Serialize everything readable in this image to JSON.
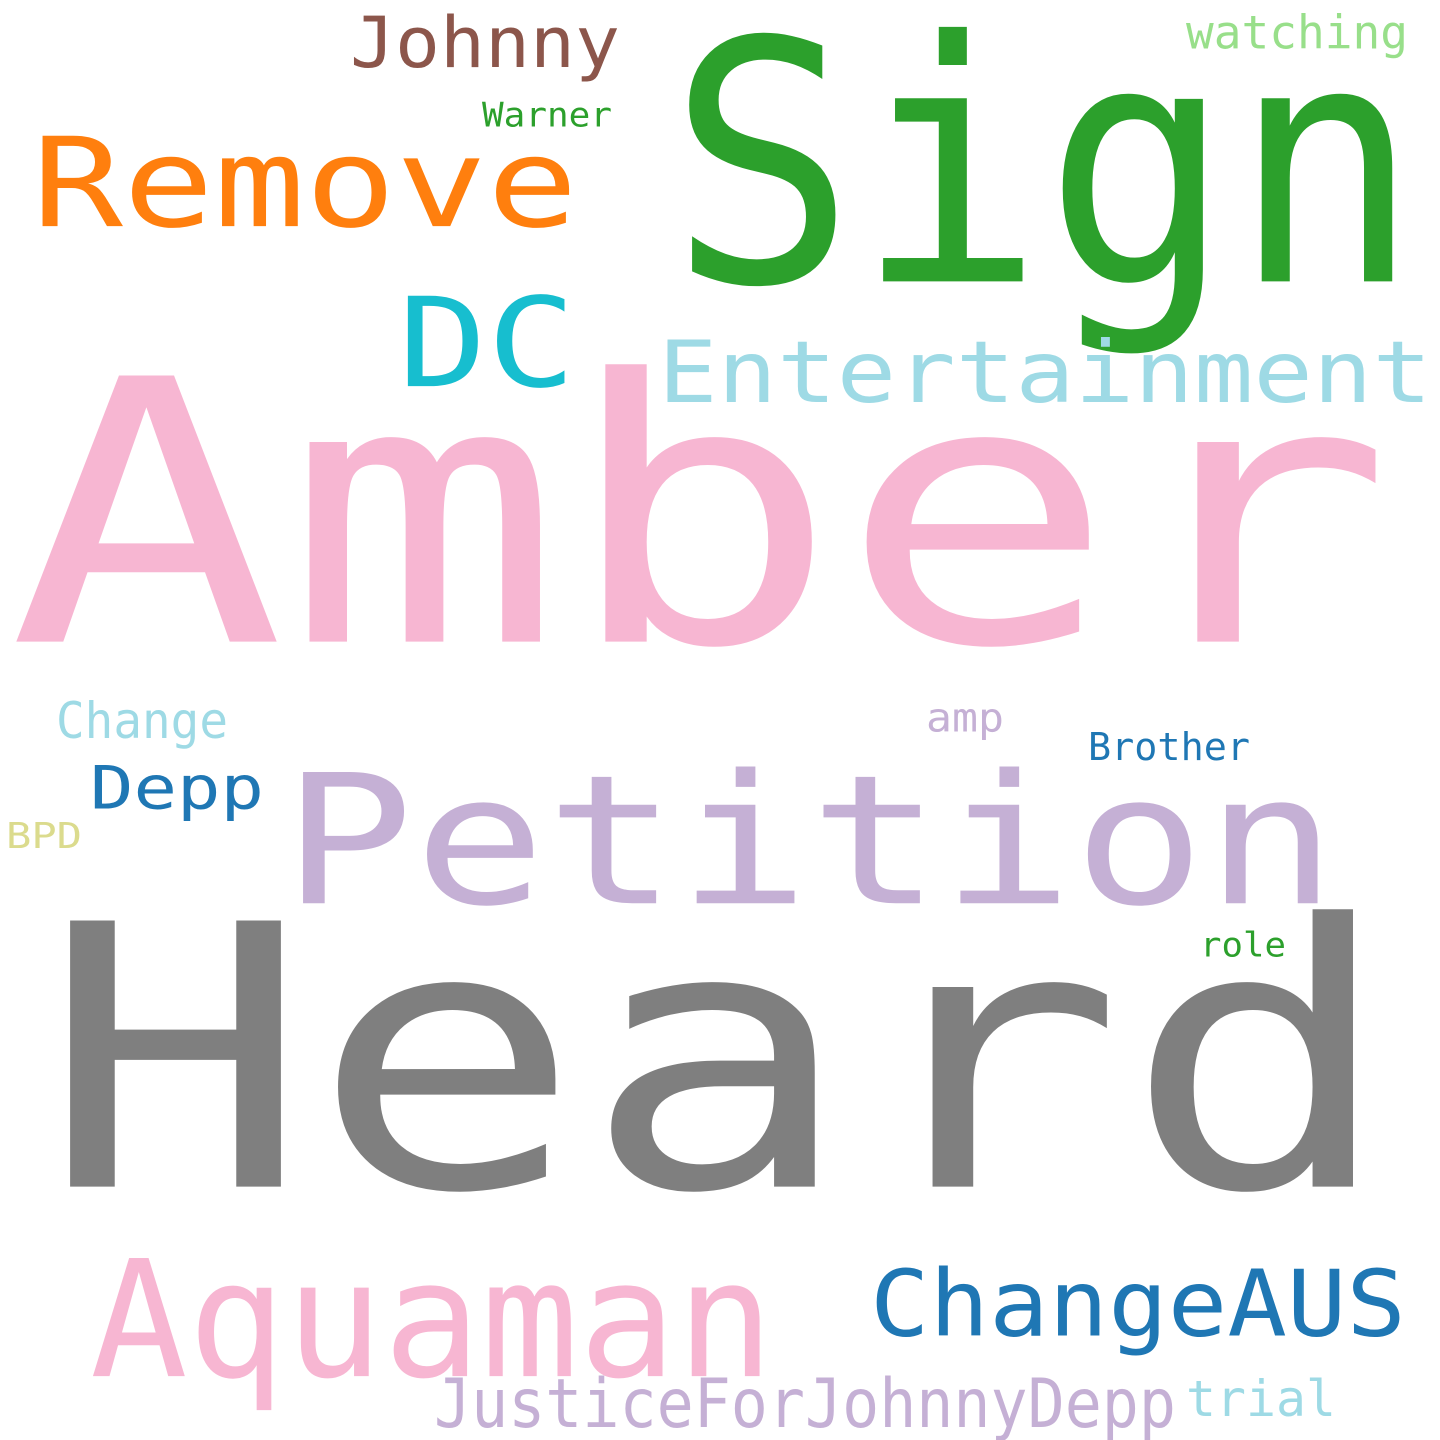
{
  "words": [
    {
      "text": "Amber",
      "color": "#f7b6d2"
    },
    {
      "text": "Heard",
      "color": "#7f7f7f"
    },
    {
      "text": "Sign",
      "color": "#2ca02c"
    },
    {
      "text": "Petition",
      "color": "#c5b0d5"
    },
    {
      "text": "Remove",
      "color": "#ff7f0e"
    },
    {
      "text": "Entertainment",
      "color": "#9edae5"
    },
    {
      "text": "DC",
      "color": "#17becf"
    },
    {
      "text": "Aquaman",
      "color": "#f7b6d2"
    },
    {
      "text": "ChangeAUS",
      "color": "#1f77b4"
    },
    {
      "text": "Johnny",
      "color": "#8c564b"
    },
    {
      "text": "JusticeForJohnnyDepp",
      "color": "#c5b0d5"
    },
    {
      "text": "Depp",
      "color": "#1f77b4"
    },
    {
      "text": "Change",
      "color": "#9edae5"
    },
    {
      "text": "trial",
      "color": "#9edae5"
    },
    {
      "text": "watching",
      "color": "#98df8a"
    },
    {
      "text": "Brother",
      "color": "#1f77b4"
    },
    {
      "text": "Warner",
      "color": "#2ca02c"
    },
    {
      "text": "amp",
      "color": "#c5b0d5"
    },
    {
      "text": "BPD",
      "color": "#dbdb8d"
    },
    {
      "text": "role",
      "color": "#2ca02c"
    }
  ]
}
